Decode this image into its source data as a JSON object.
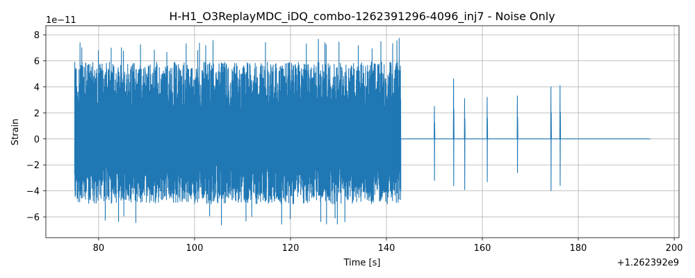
{
  "chart_data": {
    "type": "line",
    "title": "H-H1_O3ReplayMDC_iDQ_combo-1262391296-4096_inj7 - Noise Only",
    "xlabel": "Time [s]",
    "ylabel": "Strain",
    "x_offset_label": "+1.262392e9",
    "y_scale_label": "1e−11",
    "xlim": [
      69,
      201
    ],
    "ylim": [
      -7.6,
      8.7
    ],
    "xticks": [
      80,
      100,
      120,
      140,
      160,
      180,
      200
    ],
    "xtick_labels": [
      "80",
      "100",
      "120",
      "140",
      "160",
      "180",
      "200"
    ],
    "yticks": [
      -6,
      -4,
      -2,
      0,
      2,
      4,
      6,
      8
    ],
    "ytick_labels": [
      "−6",
      "−4",
      "−2",
      "0",
      "2",
      "4",
      "6",
      "8"
    ],
    "grid": true,
    "series_color": "#1f77b4",
    "series": [
      {
        "x_range": [
          75.0,
          195.0
        ],
        "noise_segment": {
          "x_range": [
            75.0,
            143.0
          ],
          "typical_amplitude": [
            -5.0,
            5.9
          ],
          "extremes": [
            -6.9,
            7.8
          ]
        },
        "quiet_level": 0,
        "glitches": [
          {
            "x": 150.0,
            "max": 2.5,
            "min": -3.2
          },
          {
            "x": 154.0,
            "max": 4.6,
            "min": -3.6
          },
          {
            "x": 156.3,
            "max": 3.1,
            "min": -3.9
          },
          {
            "x": 161.0,
            "max": 3.2,
            "min": -3.3
          },
          {
            "x": 167.3,
            "max": 3.3,
            "min": -2.6
          },
          {
            "x": 174.3,
            "max": 4.0,
            "min": -4.0
          },
          {
            "x": 176.2,
            "max": 4.1,
            "min": -3.6
          }
        ]
      }
    ]
  }
}
